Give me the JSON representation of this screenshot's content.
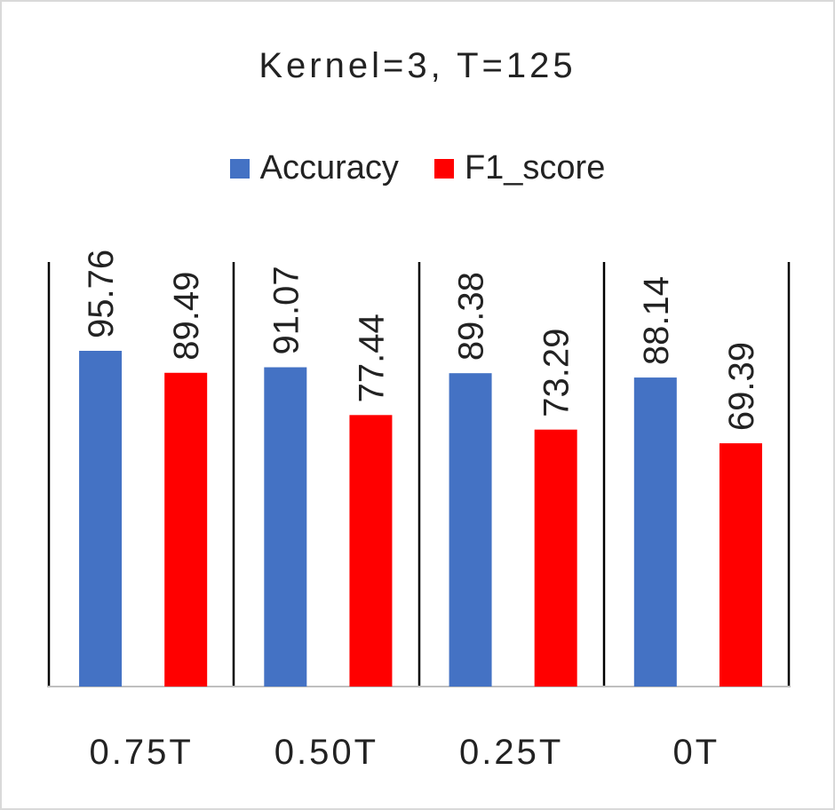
{
  "chart_data": {
    "type": "bar",
    "title": "Kernel=3, T=125",
    "categories": [
      "0.75T",
      "0.50T",
      "0.25T",
      "0T"
    ],
    "series": [
      {
        "name": "Accuracy",
        "color": "#4472C4",
        "values": [
          95.76,
          91.07,
          89.38,
          88.14
        ]
      },
      {
        "name": "F1_score",
        "color": "#FF0000",
        "values": [
          89.49,
          77.44,
          73.29,
          69.39
        ]
      }
    ],
    "xlabel": "",
    "ylabel": "",
    "ylim": [
      0,
      105
    ],
    "legend_position": "top",
    "grid": false,
    "data_labels": "rotated-vertical"
  }
}
